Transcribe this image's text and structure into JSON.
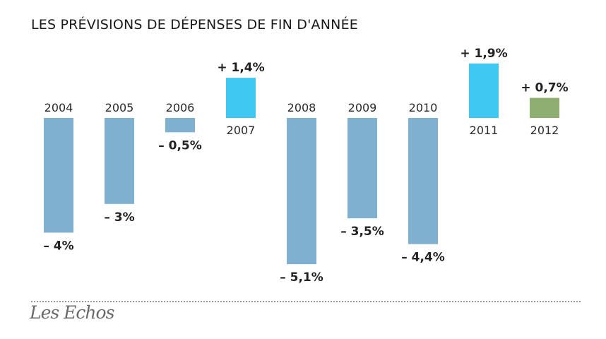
{
  "header": {
    "title": "LES PRÉVISIONS DE DÉPENSES DE FIN D'ANNÉE"
  },
  "footer": {
    "logo": "Les Echos"
  },
  "colors": {
    "negative": "#7fb0cf",
    "strong_positive": "#3fc8f2",
    "forecast": "#8fae72"
  },
  "chart_data": {
    "type": "bar",
    "title": "LES PRÉVISIONS DE DÉPENSES DE FIN D'ANNÉE",
    "xlabel": "",
    "ylabel": "",
    "categories": [
      "2004",
      "2005",
      "2006",
      "2007",
      "2008",
      "2009",
      "2010",
      "2011",
      "2012"
    ],
    "values": [
      -4,
      -3,
      -0.5,
      1.4,
      -5.1,
      -3.5,
      -4.4,
      1.9,
      0.7
    ],
    "value_labels": [
      "– 4%",
      "– 3%",
      "– 0,5%",
      "+ 1,4%",
      "– 5,1%",
      "– 3,5%",
      "– 4,4%",
      "+ 1,9%",
      "+ 0,7%"
    ],
    "bar_colors": [
      "#7fb0cf",
      "#7fb0cf",
      "#7fb0cf",
      "#3fc8f2",
      "#7fb0cf",
      "#7fb0cf",
      "#7fb0cf",
      "#3fc8f2",
      "#8fae72"
    ],
    "ylim": [
      -5.1,
      1.9
    ],
    "grid": false,
    "legend": "none"
  }
}
